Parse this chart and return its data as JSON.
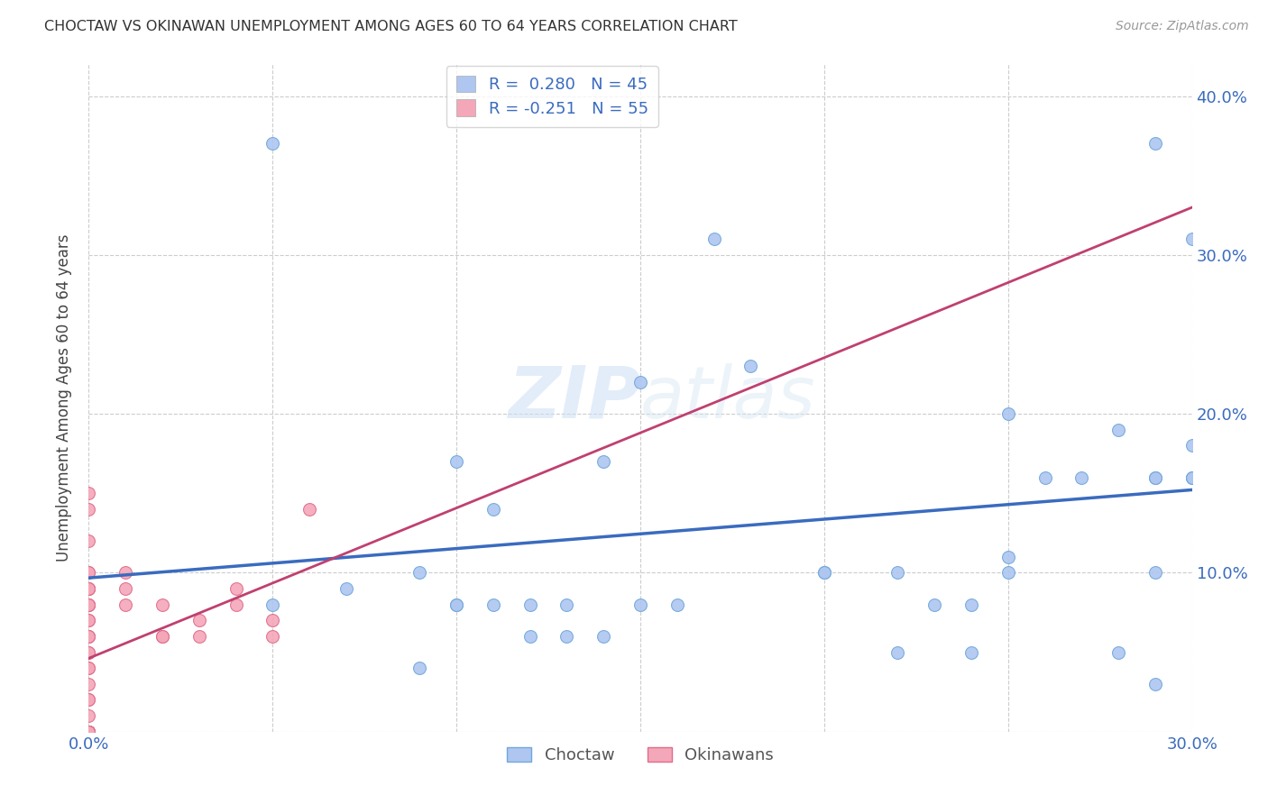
{
  "title": "CHOCTAW VS OKINAWAN UNEMPLOYMENT AMONG AGES 60 TO 64 YEARS CORRELATION CHART",
  "source": "Source: ZipAtlas.com",
  "ylabel": "Unemployment Among Ages 60 to 64 years",
  "xlim": [
    0.0,
    0.3
  ],
  "ylim": [
    0.0,
    0.42
  ],
  "xticks": [
    0.0,
    0.05,
    0.1,
    0.15,
    0.2,
    0.25,
    0.3
  ],
  "yticks": [
    0.0,
    0.1,
    0.2,
    0.3,
    0.4
  ],
  "choctaw_color": "#aec6f0",
  "choctaw_edge_color": "#6fa8dc",
  "okinawan_color": "#f4a7b9",
  "okinawan_edge_color": "#e06c8a",
  "trendline_choctaw_color": "#3a6bbf",
  "trendline_okinawan_color": "#c04070",
  "legend_label_choctaw": "Choctaw",
  "legend_label_okinawan": "Okinawans",
  "watermark": "ZIPatlas",
  "choctaw_x": [
    0.05,
    0.05,
    0.07,
    0.09,
    0.09,
    0.1,
    0.1,
    0.1,
    0.11,
    0.11,
    0.12,
    0.12,
    0.13,
    0.13,
    0.14,
    0.14,
    0.15,
    0.15,
    0.16,
    0.17,
    0.18,
    0.2,
    0.2,
    0.22,
    0.22,
    0.23,
    0.24,
    0.24,
    0.25,
    0.25,
    0.25,
    0.26,
    0.27,
    0.28,
    0.28,
    0.29,
    0.29,
    0.29,
    0.29,
    0.29,
    0.3,
    0.3,
    0.3,
    0.3,
    0.3
  ],
  "choctaw_y": [
    0.37,
    0.08,
    0.09,
    0.1,
    0.04,
    0.08,
    0.08,
    0.17,
    0.14,
    0.08,
    0.08,
    0.06,
    0.08,
    0.06,
    0.17,
    0.06,
    0.22,
    0.08,
    0.08,
    0.31,
    0.23,
    0.1,
    0.1,
    0.1,
    0.05,
    0.08,
    0.08,
    0.05,
    0.11,
    0.1,
    0.2,
    0.16,
    0.16,
    0.19,
    0.05,
    0.16,
    0.16,
    0.37,
    0.1,
    0.03,
    0.16,
    0.16,
    0.31,
    0.18,
    0.16
  ],
  "okinawan_x": [
    0.0,
    0.0,
    0.0,
    0.0,
    0.0,
    0.0,
    0.0,
    0.0,
    0.0,
    0.0,
    0.0,
    0.0,
    0.0,
    0.0,
    0.0,
    0.0,
    0.0,
    0.0,
    0.0,
    0.0,
    0.0,
    0.0,
    0.0,
    0.0,
    0.0,
    0.0,
    0.0,
    0.0,
    0.0,
    0.0,
    0.0,
    0.0,
    0.0,
    0.0,
    0.0,
    0.0,
    0.0,
    0.0,
    0.0,
    0.0,
    0.0,
    0.0,
    0.01,
    0.01,
    0.01,
    0.02,
    0.02,
    0.02,
    0.03,
    0.03,
    0.04,
    0.04,
    0.05,
    0.05,
    0.06
  ],
  "okinawan_y": [
    0.0,
    0.0,
    0.0,
    0.0,
    0.0,
    0.0,
    0.0,
    0.0,
    0.0,
    0.0,
    0.0,
    0.0,
    0.0,
    0.0,
    0.0,
    0.0,
    0.01,
    0.02,
    0.02,
    0.03,
    0.04,
    0.04,
    0.05,
    0.05,
    0.06,
    0.06,
    0.06,
    0.07,
    0.07,
    0.08,
    0.08,
    0.08,
    0.08,
    0.09,
    0.09,
    0.09,
    0.09,
    0.1,
    0.1,
    0.12,
    0.15,
    0.14,
    0.08,
    0.09,
    0.1,
    0.06,
    0.06,
    0.08,
    0.06,
    0.07,
    0.08,
    0.09,
    0.06,
    0.07,
    0.14
  ],
  "background_color": "#ffffff",
  "grid_color": "#cccccc"
}
